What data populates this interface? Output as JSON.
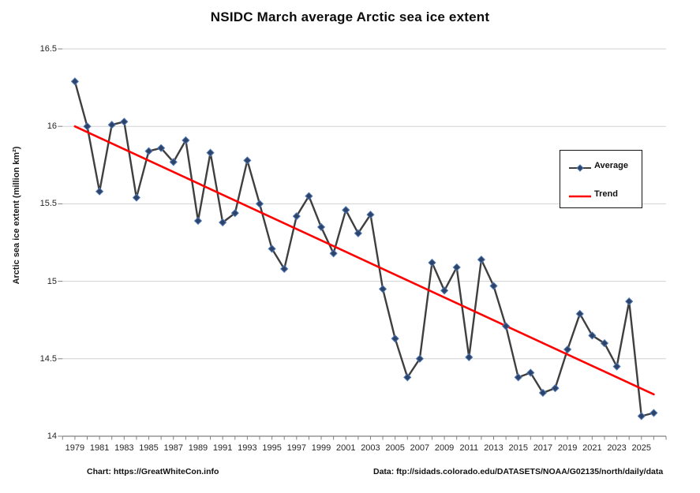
{
  "page": {
    "footer_left": "Chart: https://GreatWhiteCon.info",
    "footer_right": "Data: ftp://sidads.colorado.edu/DATASETS/NOAA/G02135/north/daily/data"
  },
  "chart_data": {
    "type": "line",
    "title": "NSIDC March average Arctic sea ice extent",
    "xlabel": "",
    "ylabel": "Arctic sea ice extent (million km²)",
    "ylim": [
      14.0,
      16.5
    ],
    "ytick_labels": [
      "16.5",
      "16",
      "15.5",
      "15",
      "14.5",
      "14"
    ],
    "yticks": [
      16.5,
      16.0,
      15.5,
      15.0,
      14.5,
      14.0
    ],
    "xtick_labels": [
      "1979",
      "1981",
      "1983",
      "1985",
      "1987",
      "1989",
      "1991",
      "1993",
      "1995",
      "1997",
      "1999",
      "2001",
      "2003",
      "2005",
      "2007",
      "2009",
      "2011",
      "2013",
      "2015",
      "2017",
      "2019",
      "2021",
      "2023",
      "2025"
    ],
    "grid": "horizontal",
    "legend_position": "inside-right",
    "x": [
      1979,
      1980,
      1981,
      1982,
      1983,
      1984,
      1985,
      1986,
      1987,
      1988,
      1989,
      1990,
      1991,
      1992,
      1993,
      1994,
      1995,
      1996,
      1997,
      1998,
      1999,
      2000,
      2001,
      2002,
      2003,
      2004,
      2005,
      2006,
      2007,
      2008,
      2009,
      2010,
      2011,
      2012,
      2013,
      2014,
      2015,
      2016,
      2017,
      2018,
      2019,
      2020,
      2021,
      2022,
      2023,
      2024,
      2025,
      2026
    ],
    "series": [
      {
        "name": "Average",
        "type": "line-with-diamond-markers",
        "color": "#3f3f3f",
        "marker": "diamond",
        "marker_fill": "#2f4369",
        "marker_stroke": "#4d79b5",
        "values": [
          16.29,
          16.0,
          15.58,
          16.01,
          16.03,
          15.54,
          15.84,
          15.86,
          15.77,
          15.91,
          15.39,
          15.83,
          15.38,
          15.44,
          15.78,
          15.5,
          15.21,
          15.08,
          15.42,
          15.55,
          15.35,
          15.18,
          15.46,
          15.31,
          15.43,
          14.95,
          14.63,
          14.38,
          14.5,
          15.12,
          14.94,
          15.09,
          14.51,
          15.14,
          14.97,
          14.71,
          14.38,
          14.41,
          14.28,
          14.31,
          14.56,
          14.79,
          14.65,
          14.6,
          14.45,
          14.87,
          14.13,
          14.15
        ]
      },
      {
        "name": "Trend",
        "type": "straight-line",
        "color": "#ff0000",
        "trend_line": {
          "x": [
            1979,
            2026
          ],
          "y": [
            16.0,
            14.27
          ]
        }
      }
    ]
  }
}
